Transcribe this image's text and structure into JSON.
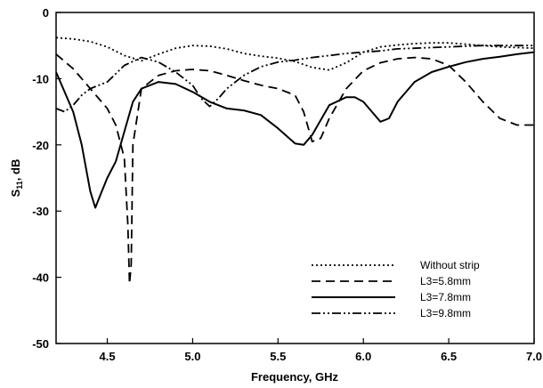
{
  "chart_data": {
    "type": "line",
    "title": "",
    "xlabel": "Frequency, GHz",
    "ylabel": "S11, dB",
    "ylabel_main": "S",
    "ylabel_sub": "11",
    "ylabel_rest": ", dB",
    "xlim": [
      4.2,
      7.0
    ],
    "ylim": [
      -50,
      0
    ],
    "x_ticks": [
      4.5,
      5.0,
      5.5,
      6.0,
      6.5,
      7.0
    ],
    "x_tick_labels": [
      "4.5",
      "5.0",
      "5.5",
      "6.0",
      "6.5",
      "7.0"
    ],
    "y_ticks": [
      0,
      -10,
      -20,
      -30,
      -40,
      -50
    ],
    "y_tick_labels": [
      "0",
      "-10",
      "-20",
      "-30",
      "-40",
      "-50"
    ],
    "grid": false,
    "legend_position": "bottom-right",
    "series": [
      {
        "name": "Without strip",
        "dash": "dotted",
        "x": [
          4.2,
          4.3,
          4.4,
          4.5,
          4.6,
          4.7,
          4.8,
          4.9,
          5.0,
          5.1,
          5.2,
          5.3,
          5.4,
          5.5,
          5.6,
          5.7,
          5.8,
          5.9,
          6.0,
          6.1,
          6.2,
          6.3,
          6.4,
          6.5,
          6.6,
          6.7,
          6.8,
          6.9,
          7.0
        ],
        "y": [
          -3.8,
          -4.0,
          -4.4,
          -5.2,
          -6.5,
          -7.3,
          -6.3,
          -5.4,
          -5.0,
          -5.1,
          -5.5,
          -6.2,
          -6.6,
          -6.9,
          -7.4,
          -8.3,
          -8.7,
          -7.6,
          -6.0,
          -5.2,
          -4.9,
          -4.7,
          -4.6,
          -4.6,
          -4.8,
          -5.0,
          -5.2,
          -5.3,
          -5.4
        ]
      },
      {
        "name": "L3=5.8mm",
        "dash": "dashed",
        "x": [
          4.2,
          4.3,
          4.4,
          4.5,
          4.55,
          4.6,
          4.62,
          4.63,
          4.64,
          4.65,
          4.7,
          4.8,
          4.9,
          5.0,
          5.1,
          5.2,
          5.3,
          5.4,
          5.5,
          5.6,
          5.65,
          5.7,
          5.75,
          5.8,
          5.9,
          6.0,
          6.1,
          6.2,
          6.3,
          6.4,
          6.5,
          6.6,
          6.7,
          6.8,
          6.9,
          7.0
        ],
        "y": [
          -6.3,
          -8.5,
          -11.5,
          -14.5,
          -17.0,
          -22.0,
          -32.0,
          -41.0,
          -38.0,
          -20.0,
          -11.5,
          -9.5,
          -8.8,
          -8.6,
          -8.8,
          -9.5,
          -10.3,
          -11.0,
          -11.5,
          -12.5,
          -15.0,
          -19.5,
          -19.0,
          -16.0,
          -11.5,
          -8.8,
          -7.6,
          -7.0,
          -6.8,
          -7.0,
          -8.0,
          -10.5,
          -13.5,
          -16.0,
          -17.0,
          -17.0
        ]
      },
      {
        "name": "L3=7.8mm",
        "dash": "solid",
        "x": [
          4.2,
          4.3,
          4.35,
          4.4,
          4.43,
          4.46,
          4.5,
          4.55,
          4.6,
          4.65,
          4.7,
          4.8,
          4.9,
          5.0,
          5.1,
          5.2,
          5.3,
          5.4,
          5.5,
          5.6,
          5.65,
          5.7,
          5.8,
          5.9,
          5.95,
          6.0,
          6.05,
          6.1,
          6.15,
          6.2,
          6.3,
          6.4,
          6.5,
          6.6,
          6.7,
          6.8,
          6.9,
          7.0
        ],
        "y": [
          -9.0,
          -15.0,
          -20.0,
          -27.0,
          -29.5,
          -27.5,
          -25.0,
          -22.5,
          -18.0,
          -13.5,
          -11.5,
          -10.5,
          -10.8,
          -12.0,
          -13.5,
          -14.5,
          -14.8,
          -15.5,
          -17.5,
          -19.8,
          -20.0,
          -18.5,
          -14.0,
          -12.8,
          -12.8,
          -13.5,
          -15.0,
          -16.5,
          -16.0,
          -13.5,
          -10.5,
          -9.0,
          -8.2,
          -7.5,
          -7.0,
          -6.7,
          -6.3,
          -6.0
        ]
      },
      {
        "name": "L3=9.8mm",
        "dash": "dashdotdot",
        "x": [
          4.2,
          4.25,
          4.3,
          4.35,
          4.4,
          4.5,
          4.6,
          4.7,
          4.8,
          4.9,
          5.0,
          5.05,
          5.1,
          5.15,
          5.2,
          5.3,
          5.4,
          5.5,
          5.6,
          5.7,
          5.8,
          5.9,
          6.0,
          6.1,
          6.2,
          6.3,
          6.4,
          6.5,
          6.6,
          6.7,
          6.8,
          6.9,
          7.0
        ],
        "y": [
          -14.5,
          -15.0,
          -14.0,
          -12.5,
          -11.5,
          -10.5,
          -8.0,
          -6.8,
          -7.5,
          -9.0,
          -11.0,
          -13.0,
          -14.2,
          -13.0,
          -11.5,
          -9.5,
          -8.2,
          -7.5,
          -7.2,
          -6.8,
          -6.5,
          -6.2,
          -6.0,
          -5.8,
          -5.5,
          -5.4,
          -5.3,
          -5.2,
          -5.1,
          -5.0,
          -5.0,
          -5.0,
          -5.0
        ]
      }
    ]
  }
}
